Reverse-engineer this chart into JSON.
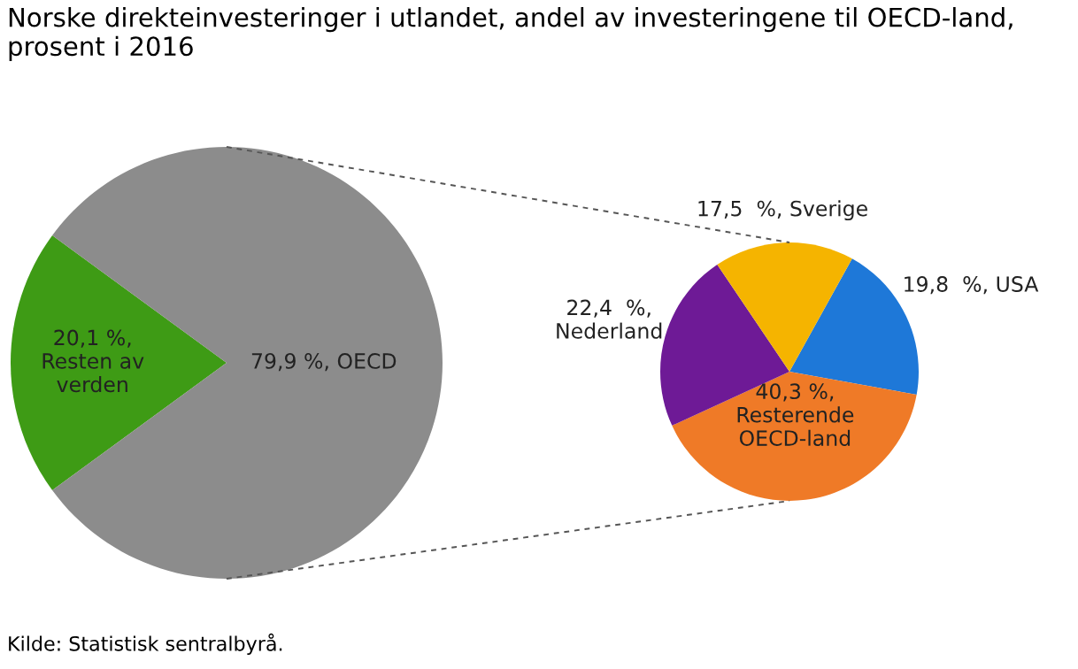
{
  "chart_data": [
    {
      "type": "pie",
      "title": "Norske direkteinvesteringer i utlandet, andel av investeringene til OECD-land,\nprosent i 2016",
      "annotations": [
        "Kilde: Statistisk sentralbyrå."
      ],
      "categories": [
        "Resten av\nverden",
        "OECD"
      ],
      "values": [
        20.1,
        79.9
      ],
      "colors": [
        "#3e9b15",
        "#8c8c8c"
      ],
      "value_labels": [
        "20,1 %,",
        "79,9 %,"
      ]
    },
    {
      "type": "pie",
      "categories": [
        "USA",
        "Resterende\nOECD-land",
        "Nederland",
        "Sverige"
      ],
      "values": [
        19.8,
        40.3,
        22.4,
        17.5
      ],
      "colors": [
        "#1e78d8",
        "#ef7a27",
        "#6e1a96",
        "#f5b400"
      ],
      "value_labels": [
        "19,8  %,",
        "40,3 %,",
        "22,4  %,",
        "17,5  %,"
      ]
    }
  ]
}
